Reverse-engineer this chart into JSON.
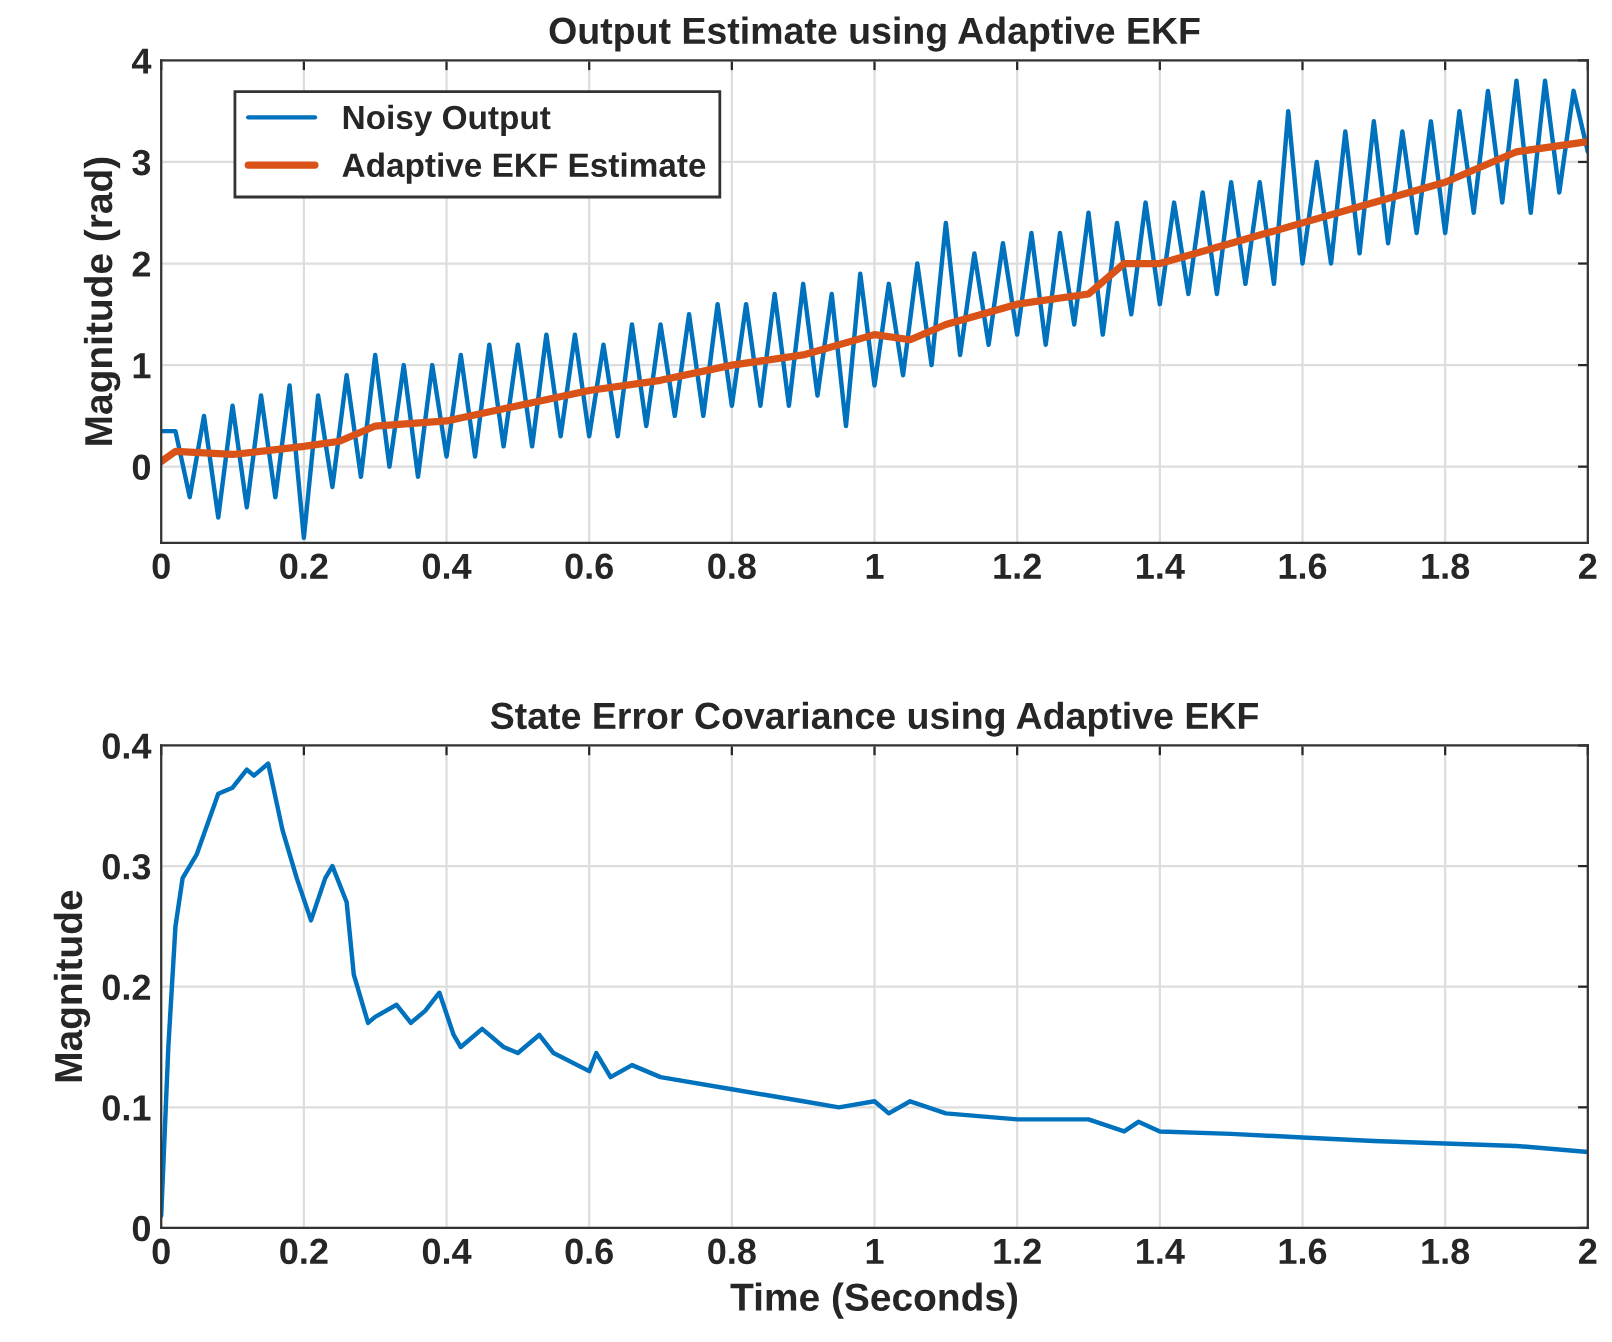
{
  "chart_data": [
    {
      "type": "line",
      "title": "Output Estimate using Adaptive EKF",
      "ylabel": "Magnitude (rad)",
      "xlim": [
        0,
        2
      ],
      "ylim": [
        -0.75,
        4
      ],
      "xticks": [
        0,
        0.2,
        0.4,
        0.6,
        0.8,
        1,
        1.2,
        1.4,
        1.6,
        1.8,
        2
      ],
      "yticks": [
        0,
        1,
        2,
        3,
        4
      ],
      "grid": true,
      "legend": "top left",
      "series": [
        {
          "name": "Noisy Output",
          "color": "#0072bd",
          "x": [
            0,
            0.02,
            0.04,
            0.06,
            0.08,
            0.1,
            0.12,
            0.14,
            0.16,
            0.18,
            0.2,
            0.22,
            0.24,
            0.26,
            0.28,
            0.3,
            0.32,
            0.34,
            0.36,
            0.38,
            0.4,
            0.42,
            0.44,
            0.46,
            0.48,
            0.5,
            0.52,
            0.54,
            0.56,
            0.58,
            0.6,
            0.62,
            0.64,
            0.66,
            0.68,
            0.7,
            0.72,
            0.74,
            0.76,
            0.78,
            0.8,
            0.82,
            0.84,
            0.86,
            0.88,
            0.9,
            0.92,
            0.94,
            0.96,
            0.98,
            1.0,
            1.02,
            1.04,
            1.06,
            1.08,
            1.1,
            1.12,
            1.14,
            1.16,
            1.18,
            1.2,
            1.22,
            1.24,
            1.26,
            1.28,
            1.3,
            1.32,
            1.34,
            1.36,
            1.38,
            1.4,
            1.42,
            1.44,
            1.46,
            1.48,
            1.5,
            1.52,
            1.54,
            1.56,
            1.58,
            1.6,
            1.62,
            1.64,
            1.66,
            1.68,
            1.7,
            1.72,
            1.74,
            1.76,
            1.78,
            1.8,
            1.82,
            1.84,
            1.86,
            1.88,
            1.9,
            1.92,
            1.94,
            1.96,
            1.98,
            2.0
          ],
          "values": [
            0.35,
            0.35,
            -0.3,
            0.5,
            -0.5,
            0.6,
            -0.4,
            0.7,
            -0.3,
            0.8,
            -0.7,
            0.7,
            -0.2,
            0.9,
            -0.1,
            1.1,
            0.0,
            1.0,
            -0.1,
            1.0,
            0.1,
            1.1,
            0.1,
            1.2,
            0.2,
            1.2,
            0.2,
            1.3,
            0.3,
            1.3,
            0.3,
            1.2,
            0.3,
            1.4,
            0.4,
            1.4,
            0.5,
            1.5,
            0.5,
            1.6,
            0.6,
            1.6,
            0.6,
            1.7,
            0.6,
            1.8,
            0.7,
            1.7,
            0.4,
            1.9,
            0.8,
            1.8,
            0.9,
            2.0,
            1.0,
            2.4,
            1.1,
            2.1,
            1.2,
            2.2,
            1.3,
            2.3,
            1.2,
            2.3,
            1.4,
            2.5,
            1.3,
            2.4,
            1.5,
            2.6,
            1.6,
            2.6,
            1.7,
            2.7,
            1.7,
            2.8,
            1.8,
            2.8,
            1.8,
            3.5,
            2.0,
            3.0,
            2.0,
            3.3,
            2.1,
            3.4,
            2.2,
            3.3,
            2.3,
            3.4,
            2.3,
            3.5,
            2.5,
            3.7,
            2.6,
            3.8,
            2.5,
            3.8,
            2.7,
            3.7,
            3.1
          ]
        },
        {
          "name": "Adaptive EKF Estimate",
          "color": "#d95319",
          "x": [
            0,
            0.02,
            0.1,
            0.2,
            0.25,
            0.3,
            0.4,
            0.5,
            0.6,
            0.7,
            0.8,
            0.9,
            1.0,
            1.05,
            1.1,
            1.2,
            1.3,
            1.35,
            1.4,
            1.5,
            1.6,
            1.7,
            1.8,
            1.9,
            2.0
          ],
          "values": [
            0.05,
            0.15,
            0.12,
            0.2,
            0.25,
            0.4,
            0.45,
            0.6,
            0.75,
            0.85,
            1.0,
            1.1,
            1.3,
            1.25,
            1.4,
            1.6,
            1.7,
            2.0,
            2.0,
            2.2,
            2.4,
            2.6,
            2.8,
            3.1,
            3.2
          ]
        }
      ]
    },
    {
      "type": "line",
      "title": "State Error Covariance using Adaptive EKF",
      "xlabel": "Time (Seconds)",
      "ylabel": "Magnitude",
      "xlim": [
        0,
        2
      ],
      "ylim": [
        0,
        0.4
      ],
      "xticks": [
        0,
        0.2,
        0.4,
        0.6,
        0.8,
        1,
        1.2,
        1.4,
        1.6,
        1.8,
        2
      ],
      "yticks": [
        0,
        0.1,
        0.2,
        0.3,
        0.4
      ],
      "grid": true,
      "series": [
        {
          "color": "#0072bd",
          "x": [
            0,
            0.01,
            0.02,
            0.03,
            0.05,
            0.08,
            0.1,
            0.12,
            0.13,
            0.15,
            0.17,
            0.19,
            0.21,
            0.23,
            0.24,
            0.26,
            0.27,
            0.29,
            0.3,
            0.33,
            0.35,
            0.37,
            0.39,
            0.41,
            0.42,
            0.45,
            0.48,
            0.5,
            0.53,
            0.55,
            0.6,
            0.61,
            0.63,
            0.66,
            0.7,
            0.8,
            0.85,
            0.9,
            0.95,
            1.0,
            1.02,
            1.05,
            1.1,
            1.2,
            1.3,
            1.35,
            1.37,
            1.4,
            1.5,
            1.6,
            1.7,
            1.8,
            1.9,
            2.0
          ],
          "values": [
            0.01,
            0.15,
            0.25,
            0.29,
            0.31,
            0.36,
            0.365,
            0.38,
            0.375,
            0.385,
            0.33,
            0.29,
            0.255,
            0.29,
            0.3,
            0.27,
            0.21,
            0.17,
            0.175,
            0.185,
            0.17,
            0.18,
            0.195,
            0.16,
            0.15,
            0.165,
            0.15,
            0.145,
            0.16,
            0.145,
            0.13,
            0.145,
            0.125,
            0.135,
            0.125,
            0.115,
            0.11,
            0.105,
            0.1,
            0.105,
            0.095,
            0.105,
            0.095,
            0.09,
            0.09,
            0.08,
            0.088,
            0.08,
            0.078,
            0.075,
            0.072,
            0.07,
            0.068,
            0.063
          ]
        }
      ]
    }
  ]
}
